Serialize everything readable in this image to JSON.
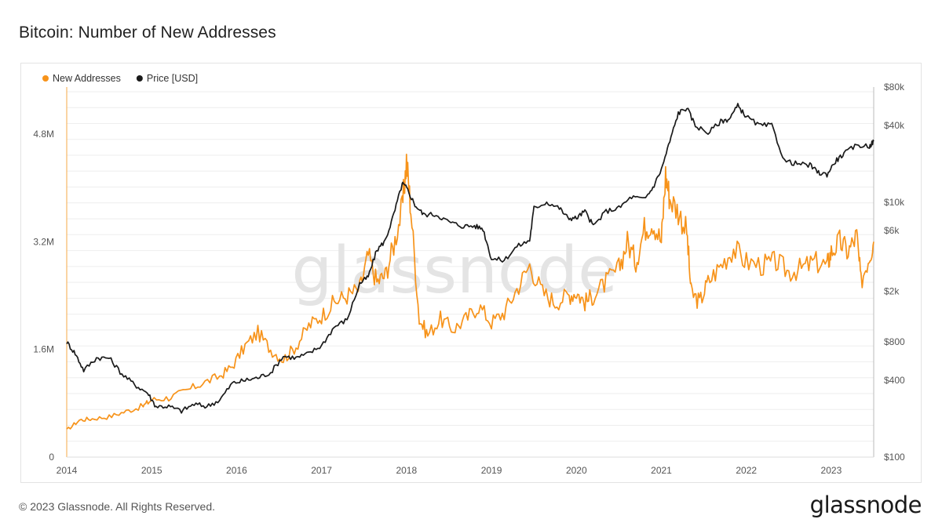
{
  "title": "Bitcoin: Number of New Addresses",
  "footer": {
    "copyright": "© 2023 Glassnode. All Rights Reserved.",
    "brand": "glassnode"
  },
  "watermark": "glassnode",
  "colors": {
    "new_addresses": "#f7931a",
    "price": "#1a1a1a",
    "grid": "#eeeeee"
  },
  "chart_data": {
    "type": "line",
    "title": "Bitcoin: Number of New Addresses",
    "legend_position": "top-left",
    "grid": true,
    "x_axis": {
      "ticks": [
        "2014",
        "2015",
        "2016",
        "2017",
        "2018",
        "2019",
        "2020",
        "2021",
        "2022",
        "2023"
      ],
      "range": [
        2014.0,
        2023.5
      ]
    },
    "y_left": {
      "ticks": [
        0,
        1600000,
        3200000,
        4800000
      ],
      "tick_labels": [
        "0",
        "1.6M",
        "3.2M",
        "4.8M"
      ],
      "range": [
        0,
        5500000
      ]
    },
    "y_right": {
      "scale": "log",
      "ticks": [
        100,
        400,
        800,
        2000,
        6000,
        10000,
        40000,
        80000
      ],
      "tick_labels": [
        "$100",
        "$400",
        "$800",
        "$2k",
        "$6k",
        "$10k",
        "$40k",
        "$80k"
      ],
      "range": [
        100,
        80000
      ]
    },
    "series": [
      {
        "name": "New Addresses",
        "axis": "left",
        "color": "#f7931a",
        "x": [
          2014.0,
          2014.15,
          2014.3,
          2014.5,
          2014.7,
          2014.9,
          2015.0,
          2015.2,
          2015.4,
          2015.6,
          2015.8,
          2015.95,
          2016.1,
          2016.25,
          2016.4,
          2016.55,
          2016.7,
          2016.85,
          2017.0,
          2017.15,
          2017.3,
          2017.45,
          2017.55,
          2017.65,
          2017.75,
          2017.85,
          2017.95,
          2018.0,
          2018.05,
          2018.15,
          2018.25,
          2018.4,
          2018.55,
          2018.7,
          2018.85,
          2019.0,
          2019.15,
          2019.3,
          2019.45,
          2019.6,
          2019.75,
          2019.9,
          2020.0,
          2020.1,
          2020.2,
          2020.35,
          2020.5,
          2020.6,
          2020.7,
          2020.8,
          2020.9,
          2021.0,
          2021.05,
          2021.1,
          2021.2,
          2021.3,
          2021.35,
          2021.45,
          2021.55,
          2021.7,
          2021.85,
          2022.0,
          2022.2,
          2022.35,
          2022.5,
          2022.65,
          2022.8,
          2022.95,
          2023.0,
          2023.1,
          2023.2,
          2023.3,
          2023.35,
          2023.45,
          2023.5
        ],
        "y": [
          400000,
          550000,
          570000,
          600000,
          680000,
          760000,
          850000,
          880000,
          980000,
          1100000,
          1200000,
          1350000,
          1650000,
          1850000,
          1600000,
          1450000,
          1650000,
          1950000,
          2100000,
          2300000,
          2400000,
          2500000,
          3000000,
          2600000,
          2700000,
          3150000,
          3700000,
          4400000,
          3700000,
          2050000,
          1820000,
          2050000,
          1900000,
          2050000,
          2250000,
          2000000,
          2150000,
          2500000,
          2850000,
          2450000,
          2300000,
          2400000,
          2450000,
          2300000,
          2400000,
          2600000,
          2800000,
          3200000,
          2900000,
          3400000,
          3500000,
          3200000,
          4200000,
          3850000,
          3650000,
          3350000,
          2450000,
          2300000,
          2600000,
          2850000,
          3100000,
          2900000,
          2850000,
          2900000,
          2750000,
          2800000,
          2900000,
          2850000,
          3050000,
          3200000,
          3050000,
          3300000,
          2600000,
          3000000,
          3200000
        ]
      },
      {
        "name": "Price [USD]",
        "axis": "right",
        "color": "#1a1a1a",
        "x": [
          2014.0,
          2014.1,
          2014.2,
          2014.35,
          2014.5,
          2014.65,
          2014.8,
          2014.95,
          2015.05,
          2015.2,
          2015.35,
          2015.5,
          2015.65,
          2015.8,
          2015.95,
          2016.1,
          2016.25,
          2016.4,
          2016.55,
          2016.7,
          2016.85,
          2017.0,
          2017.15,
          2017.3,
          2017.45,
          2017.55,
          2017.65,
          2017.75,
          2017.85,
          2017.95,
          2018.0,
          2018.1,
          2018.2,
          2018.35,
          2018.5,
          2018.65,
          2018.8,
          2018.9,
          2019.0,
          2019.15,
          2019.3,
          2019.45,
          2019.5,
          2019.65,
          2019.8,
          2019.9,
          2020.0,
          2020.1,
          2020.2,
          2020.35,
          2020.5,
          2020.65,
          2020.8,
          2020.9,
          2021.0,
          2021.1,
          2021.2,
          2021.3,
          2021.4,
          2021.55,
          2021.7,
          2021.8,
          2021.9,
          2022.0,
          2022.15,
          2022.3,
          2022.45,
          2022.6,
          2022.75,
          2022.85,
          2022.95,
          2023.05,
          2023.15,
          2023.3,
          2023.45,
          2023.5
        ],
        "y": [
          800,
          650,
          480,
          600,
          600,
          450,
          370,
          320,
          250,
          250,
          230,
          260,
          250,
          280,
          380,
          400,
          420,
          460,
          620,
          600,
          650,
          750,
          1050,
          1200,
          2300,
          2600,
          4200,
          5000,
          8000,
          14000,
          13000,
          9500,
          8000,
          8000,
          7000,
          6500,
          6500,
          6200,
          3600,
          3500,
          4500,
          5000,
          9000,
          10000,
          9000,
          7500,
          7500,
          8500,
          6500,
          8500,
          9000,
          11000,
          10500,
          13000,
          18000,
          30000,
          50000,
          55000,
          40000,
          35000,
          43000,
          45000,
          57000,
          47000,
          40000,
          40000,
          21000,
          20000,
          19500,
          17000,
          16500,
          21000,
          24000,
          28000,
          27500,
          30000
        ]
      }
    ]
  }
}
